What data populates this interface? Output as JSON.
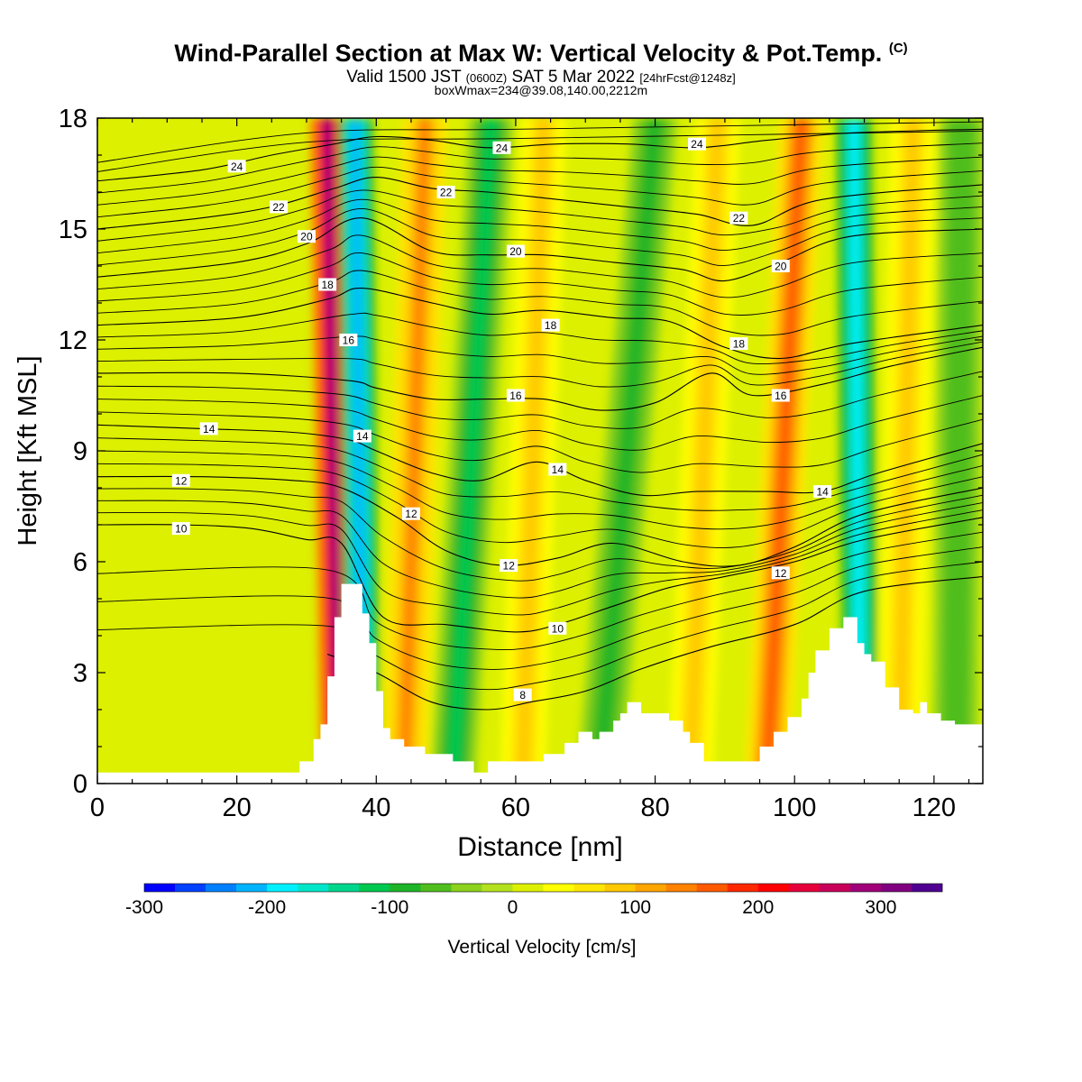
{
  "title": {
    "main": "Wind-Parallel Section at Max W: Vertical Velocity & Pot.Temp.",
    "main_mark": "(C)",
    "valid_prefix": "Valid 1500 JST",
    "valid_utc": "(0600Z)",
    "valid_date": "SAT 5 Mar 2022",
    "forecast": "[24hrFcst@1248z]",
    "boxwmax": "boxWmax=234@39.08,140.00,2212m"
  },
  "chart_data": {
    "type": "heatmap",
    "xlabel": "Distance [nm]",
    "ylabel": "Height [Kft MSL]",
    "xlim": [
      0,
      127
    ],
    "ylim": [
      0,
      18
    ],
    "x_ticks": [
      0,
      20,
      40,
      60,
      80,
      100,
      120
    ],
    "y_ticks": [
      0,
      3,
      6,
      9,
      12,
      15,
      18
    ],
    "colorbar": {
      "label": "Vertical Velocity [cm/s]",
      "min": -300,
      "max": 350,
      "step": 25,
      "tick_values": [
        -300,
        -200,
        -100,
        0,
        100,
        200,
        300
      ],
      "tick_labels": [
        "-300",
        "-200",
        "-100",
        "0",
        "100",
        "200",
        "300"
      ],
      "colors": [
        "#0000ff",
        "#0040ff",
        "#0080ff",
        "#00b4ff",
        "#00f0ff",
        "#00e6c8",
        "#00d68c",
        "#00c850",
        "#1eb428",
        "#50be1e",
        "#8cd21e",
        "#b4e11e",
        "#dcf000",
        "#ffff00",
        "#ffe600",
        "#ffc800",
        "#ffa500",
        "#ff8200",
        "#ff5a00",
        "#ff2800",
        "#ff0000",
        "#e6003c",
        "#c8005a",
        "#a00078",
        "#800080",
        "#500090"
      ]
    },
    "terrain_kft": [
      [
        0,
        0.3
      ],
      [
        29,
        0.3
      ],
      [
        29,
        0.6
      ],
      [
        31,
        0.6
      ],
      [
        31,
        1.2
      ],
      [
        32,
        1.2
      ],
      [
        32,
        1.6
      ],
      [
        33,
        1.6
      ],
      [
        33,
        2.9
      ],
      [
        34,
        2.9
      ],
      [
        34,
        4.5
      ],
      [
        35,
        4.5
      ],
      [
        35,
        5.4
      ],
      [
        38,
        5.4
      ],
      [
        38,
        4.6
      ],
      [
        39,
        4.6
      ],
      [
        39,
        3.8
      ],
      [
        40,
        3.8
      ],
      [
        40,
        2.5
      ],
      [
        41,
        2.5
      ],
      [
        41,
        1.5
      ],
      [
        42,
        1.5
      ],
      [
        42,
        1.2
      ],
      [
        44,
        1.2
      ],
      [
        44,
        1.0
      ],
      [
        47,
        1.0
      ],
      [
        47,
        0.8
      ],
      [
        51,
        0.8
      ],
      [
        51,
        0.6
      ],
      [
        54,
        0.6
      ],
      [
        54,
        0.3
      ],
      [
        56,
        0.3
      ],
      [
        56,
        0.6
      ],
      [
        64,
        0.6
      ],
      [
        64,
        0.8
      ],
      [
        67,
        0.8
      ],
      [
        67,
        1.1
      ],
      [
        69,
        1.1
      ],
      [
        69,
        1.4
      ],
      [
        71,
        1.4
      ],
      [
        71,
        1.2
      ],
      [
        72,
        1.2
      ],
      [
        72,
        1.4
      ],
      [
        74,
        1.4
      ],
      [
        74,
        1.7
      ],
      [
        75,
        1.7
      ],
      [
        75,
        1.9
      ],
      [
        76,
        1.9
      ],
      [
        76,
        2.2
      ],
      [
        78,
        2.2
      ],
      [
        78,
        1.9
      ],
      [
        82,
        1.9
      ],
      [
        82,
        1.7
      ],
      [
        84,
        1.7
      ],
      [
        84,
        1.4
      ],
      [
        85,
        1.4
      ],
      [
        85,
        1.1
      ],
      [
        87,
        1.1
      ],
      [
        87,
        0.6
      ],
      [
        95,
        0.6
      ],
      [
        95,
        1.0
      ],
      [
        97,
        1.0
      ],
      [
        97,
        1.4
      ],
      [
        99,
        1.4
      ],
      [
        99,
        1.8
      ],
      [
        101,
        1.8
      ],
      [
        101,
        2.3
      ],
      [
        102,
        2.3
      ],
      [
        102,
        3.0
      ],
      [
        103,
        3.0
      ],
      [
        103,
        3.6
      ],
      [
        105,
        3.6
      ],
      [
        105,
        4.2
      ],
      [
        107,
        4.2
      ],
      [
        107,
        4.5
      ],
      [
        109,
        4.5
      ],
      [
        109,
        3.8
      ],
      [
        110,
        3.8
      ],
      [
        110,
        3.5
      ],
      [
        111,
        3.5
      ],
      [
        111,
        3.3
      ],
      [
        113,
        3.3
      ],
      [
        113,
        2.6
      ],
      [
        115,
        2.6
      ],
      [
        115,
        2.0
      ],
      [
        117,
        2.0
      ],
      [
        117,
        1.9
      ],
      [
        118,
        1.9
      ],
      [
        118,
        2.2
      ],
      [
        119,
        2.2
      ],
      [
        119,
        1.9
      ],
      [
        121,
        1.9
      ],
      [
        121,
        1.7
      ],
      [
        123,
        1.7
      ],
      [
        123,
        1.6
      ],
      [
        127,
        1.6
      ]
    ],
    "wbands": [
      {
        "x0": 34.5,
        "x1": 33.0,
        "w": 290
      },
      {
        "x0": 38.0,
        "x1": 37.0,
        "w": -215
      },
      {
        "x0": 44.0,
        "x1": 47.0,
        "w": 130
      },
      {
        "x0": 51.0,
        "x1": 56.5,
        "w": -105
      },
      {
        "x0": 61.0,
        "x1": 64.0,
        "w": 95
      },
      {
        "x0": 72.0,
        "x1": 80.0,
        "w": -100
      },
      {
        "x0": 85.0,
        "x1": 89.0,
        "w": 75
      },
      {
        "x0": 96.0,
        "x1": 101.0,
        "w": 150
      },
      {
        "x0": 109.5,
        "x1": 108.5,
        "w": -190
      },
      {
        "x0": 115.0,
        "x1": 117.0,
        "w": 95
      },
      {
        "x0": 123.0,
        "x1": 124.0,
        "w": -75
      }
    ],
    "isentropes": [
      {
        "label": "8",
        "pts": [
          [
            33,
            3.5
          ],
          [
            40,
            3.0
          ],
          [
            48,
            2.2
          ],
          [
            56,
            2.0
          ],
          [
            62,
            2.2
          ],
          [
            70,
            2.5
          ],
          [
            78,
            3.1
          ],
          [
            88,
            3.7
          ],
          [
            100,
            4.3
          ],
          [
            110,
            5.2
          ],
          [
            127,
            5.6
          ]
        ],
        "label_at": [
          61,
          2.4
        ]
      },
      {
        "label": "10",
        "pts": [
          [
            0,
            7.0
          ],
          [
            12,
            7.0
          ],
          [
            22,
            6.9
          ],
          [
            30,
            6.6
          ],
          [
            35,
            6.5
          ],
          [
            41,
            4.5
          ],
          [
            50,
            4.3
          ],
          [
            60,
            4.1
          ],
          [
            66,
            4.3
          ],
          [
            74,
            4.8
          ],
          [
            82,
            5.3
          ],
          [
            90,
            5.6
          ],
          [
            100,
            6.0
          ],
          [
            110,
            6.6
          ],
          [
            127,
            7.2
          ]
        ],
        "label_at": [
          66,
          4.2
        ]
      },
      {
        "label": "12",
        "pts": [
          [
            0,
            8.3
          ],
          [
            15,
            8.3
          ],
          [
            28,
            8.2
          ],
          [
            35,
            8.0
          ],
          [
            43,
            7.2
          ],
          [
            50,
            6.3
          ],
          [
            58,
            5.9
          ],
          [
            66,
            6.1
          ],
          [
            74,
            6.5
          ],
          [
            84,
            6.0
          ],
          [
            92,
            5.9
          ],
          [
            100,
            6.4
          ],
          [
            110,
            7.3
          ],
          [
            127,
            8.0
          ]
        ],
        "label_at": [
          59,
          5.9
        ]
      },
      {
        "label": "14",
        "pts": [
          [
            0,
            9.7
          ],
          [
            15,
            9.6
          ],
          [
            28,
            9.5
          ],
          [
            36,
            9.3
          ],
          [
            40,
            9.0
          ],
          [
            48,
            8.4
          ],
          [
            55,
            8.2
          ],
          [
            63,
            8.7
          ],
          [
            70,
            8.2
          ],
          [
            78,
            7.8
          ],
          [
            86,
            7.9
          ],
          [
            96,
            7.9
          ],
          [
            104,
            7.9
          ],
          [
            112,
            8.4
          ],
          [
            127,
            9.2
          ]
        ],
        "label_at": [
          104,
          7.9
        ]
      },
      {
        "label": "16",
        "pts": [
          [
            0,
            11.1
          ],
          [
            20,
            11.1
          ],
          [
            36,
            10.9
          ],
          [
            40,
            10.7
          ],
          [
            48,
            10.4
          ],
          [
            56,
            10.4
          ],
          [
            64,
            10.4
          ],
          [
            72,
            10.1
          ],
          [
            80,
            10.3
          ],
          [
            88,
            11.1
          ],
          [
            94,
            10.5
          ],
          [
            104,
            10.8
          ],
          [
            114,
            11.3
          ],
          [
            127,
            11.8
          ]
        ],
        "label_at": [
          60,
          10.5
        ]
      },
      {
        "label": "18",
        "pts": [
          [
            0,
            12.4
          ],
          [
            20,
            12.6
          ],
          [
            33,
            13.1
          ],
          [
            38,
            13.4
          ],
          [
            48,
            13.0
          ],
          [
            56,
            12.7
          ],
          [
            64,
            12.8
          ],
          [
            74,
            12.6
          ],
          [
            82,
            12.5
          ],
          [
            90,
            11.8
          ],
          [
            98,
            11.5
          ],
          [
            108,
            11.9
          ],
          [
            127,
            12.4
          ]
        ],
        "label_at": [
          92,
          11.9
        ]
      },
      {
        "label": "20",
        "pts": [
          [
            0,
            13.7
          ],
          [
            20,
            14.1
          ],
          [
            30,
            14.6
          ],
          [
            38,
            15.3
          ],
          [
            48,
            14.4
          ],
          [
            56,
            14.3
          ],
          [
            64,
            14.3
          ],
          [
            74,
            14.1
          ],
          [
            84,
            13.9
          ],
          [
            90,
            13.6
          ],
          [
            98,
            14.1
          ],
          [
            108,
            14.8
          ],
          [
            127,
            15.0
          ]
        ],
        "label_at": [
          98,
          14.0
        ]
      },
      {
        "label": "22",
        "pts": [
          [
            0,
            15.0
          ],
          [
            15,
            15.3
          ],
          [
            25,
            15.6
          ],
          [
            34,
            16.1
          ],
          [
            40,
            16.4
          ],
          [
            48,
            16.1
          ],
          [
            56,
            16.0
          ],
          [
            66,
            15.8
          ],
          [
            76,
            15.6
          ],
          [
            86,
            15.4
          ],
          [
            94,
            15.1
          ],
          [
            104,
            15.8
          ],
          [
            127,
            16.2
          ]
        ],
        "label_at": [
          92,
          15.3
        ]
      },
      {
        "label": "24",
        "pts": [
          [
            0,
            16.3
          ],
          [
            15,
            16.6
          ],
          [
            25,
            17.0
          ],
          [
            34,
            17.3
          ],
          [
            40,
            17.5
          ],
          [
            48,
            17.4
          ],
          [
            56,
            17.2
          ],
          [
            66,
            17.3
          ],
          [
            76,
            17.3
          ],
          [
            86,
            17.2
          ],
          [
            96,
            17.4
          ],
          [
            108,
            17.6
          ],
          [
            127,
            17.7
          ]
        ],
        "label_at": [
          86,
          17.3
        ]
      }
    ],
    "extra_labels": [
      {
        "label": "10",
        "at": [
          12,
          6.9
        ]
      },
      {
        "label": "12",
        "at": [
          12,
          8.2
        ]
      },
      {
        "label": "14",
        "at": [
          16,
          9.6
        ]
      },
      {
        "label": "16",
        "at": [
          36,
          12.0
        ]
      },
      {
        "label": "14",
        "at": [
          38,
          9.4
        ]
      },
      {
        "label": "12",
        "at": [
          45,
          7.3
        ]
      },
      {
        "label": "18",
        "at": [
          33,
          13.5
        ]
      },
      {
        "label": "20",
        "at": [
          30,
          14.8
        ]
      },
      {
        "label": "22",
        "at": [
          26,
          15.6
        ]
      },
      {
        "label": "24",
        "at": [
          20,
          16.7
        ]
      },
      {
        "label": "14",
        "at": [
          66,
          8.5
        ]
      },
      {
        "label": "18",
        "at": [
          65,
          12.4
        ]
      },
      {
        "label": "20",
        "at": [
          60,
          14.4
        ]
      },
      {
        "label": "22",
        "at": [
          50,
          16.0
        ]
      },
      {
        "label": "24",
        "at": [
          58,
          17.2
        ]
      },
      {
        "label": "12",
        "at": [
          98,
          5.7
        ]
      },
      {
        "label": "16",
        "at": [
          98,
          10.5
        ]
      }
    ]
  }
}
